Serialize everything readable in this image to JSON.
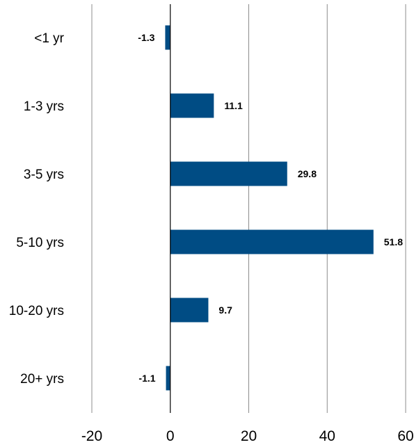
{
  "chart_data": {
    "type": "bar",
    "orientation": "horizontal",
    "title": "",
    "xlabel": "",
    "ylabel": "",
    "categories": [
      "<1 yr",
      "1-3 yrs",
      "3-5 yrs",
      "5-10 yrs",
      "10-20 yrs",
      "20+ yrs"
    ],
    "values": [
      -1.3,
      11.1,
      29.8,
      51.8,
      9.7,
      -1.1
    ],
    "data_labels": [
      "-1.3",
      "11.1",
      "29.8",
      "51.8",
      "9.7",
      "-1.1"
    ],
    "xlim": [
      -20,
      60
    ],
    "x_ticks": [
      -20,
      0,
      20,
      40,
      60
    ],
    "x_tick_labels": [
      "-20",
      "0",
      "20",
      "40",
      "60"
    ],
    "grid": "vertical",
    "legend": "none",
    "bar_color": "#004c84"
  }
}
